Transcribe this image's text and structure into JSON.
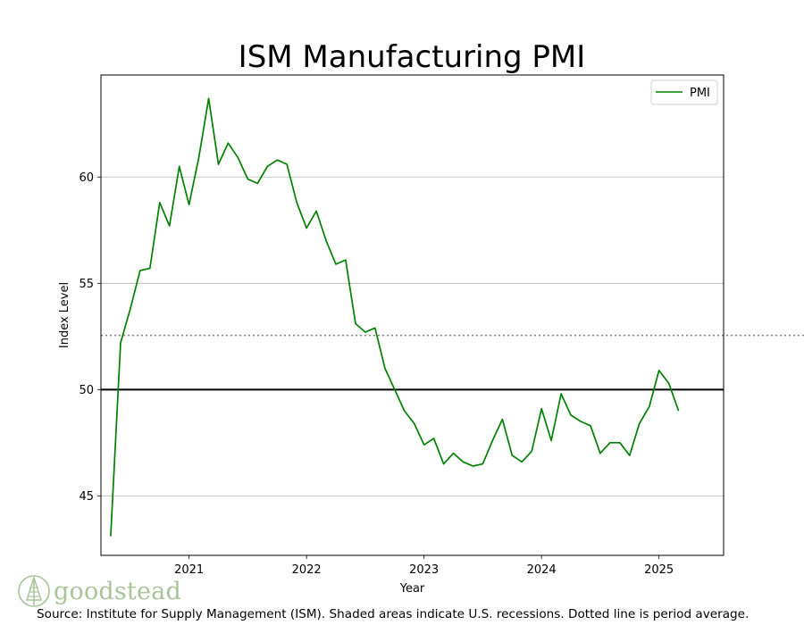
{
  "chart_data": {
    "type": "line",
    "title": "ISM Manufacturing PMI",
    "xlabel": "Year",
    "ylabel": "Index Level",
    "xlim": [
      2020.25,
      2025.55
    ],
    "ylim": [
      42.2,
      64.8
    ],
    "xticks": [
      2021,
      2022,
      2023,
      2024,
      2025
    ],
    "xtick_labels": [
      "2021",
      "2022",
      "2023",
      "2024",
      "2025"
    ],
    "yticks": [
      45,
      50,
      55,
      60
    ],
    "ytick_labels": [
      "45",
      "50",
      "55",
      "60"
    ],
    "grid": "horizontal",
    "legend": "top-right",
    "reference_lines": [
      {
        "name": "expansion-threshold",
        "value": 50,
        "style": "solid",
        "color": "#000000"
      },
      {
        "name": "period-average",
        "value": 52.55,
        "style": "dotted",
        "color": "#808080"
      }
    ],
    "series": [
      {
        "name": "PMI",
        "color": "#008000",
        "x": [
          2020.333,
          2020.417,
          2020.5,
          2020.583,
          2020.667,
          2020.75,
          2020.833,
          2020.917,
          2021.0,
          2021.083,
          2021.167,
          2021.25,
          2021.333,
          2021.417,
          2021.5,
          2021.583,
          2021.667,
          2021.75,
          2021.833,
          2021.917,
          2022.0,
          2022.083,
          2022.167,
          2022.25,
          2022.333,
          2022.417,
          2022.5,
          2022.583,
          2022.667,
          2022.75,
          2022.833,
          2022.917,
          2023.0,
          2023.083,
          2023.167,
          2023.25,
          2023.333,
          2023.417,
          2023.5,
          2023.583,
          2023.667,
          2023.75,
          2023.833,
          2023.917,
          2024.0,
          2024.083,
          2024.167,
          2024.25,
          2024.333,
          2024.417,
          2024.5,
          2024.583,
          2024.667,
          2024.75,
          2024.833,
          2024.917,
          2025.0,
          2025.083,
          2025.167
        ],
        "values": [
          43.1,
          52.2,
          53.8,
          55.6,
          55.7,
          58.8,
          57.7,
          60.5,
          58.7,
          60.9,
          63.7,
          60.6,
          61.6,
          60.9,
          59.9,
          59.7,
          60.5,
          60.8,
          60.6,
          58.8,
          57.6,
          58.4,
          57.0,
          55.9,
          56.1,
          53.1,
          52.7,
          52.9,
          51.0,
          50.0,
          49.0,
          48.4,
          47.4,
          47.7,
          46.5,
          47.0,
          46.6,
          46.4,
          46.5,
          47.6,
          48.6,
          46.9,
          46.6,
          47.1,
          49.1,
          47.6,
          49.8,
          48.8,
          48.5,
          48.3,
          47.0,
          47.5,
          47.5,
          46.9,
          48.4,
          49.2,
          50.9,
          50.3,
          49.0
        ]
      }
    ]
  },
  "source_note": "Source:  Institute for Supply Management (ISM). Shaded areas indicate U.S. recessions. Dotted line is period average.",
  "logo": {
    "text": "goodstead",
    "color": "#a8c39a"
  }
}
